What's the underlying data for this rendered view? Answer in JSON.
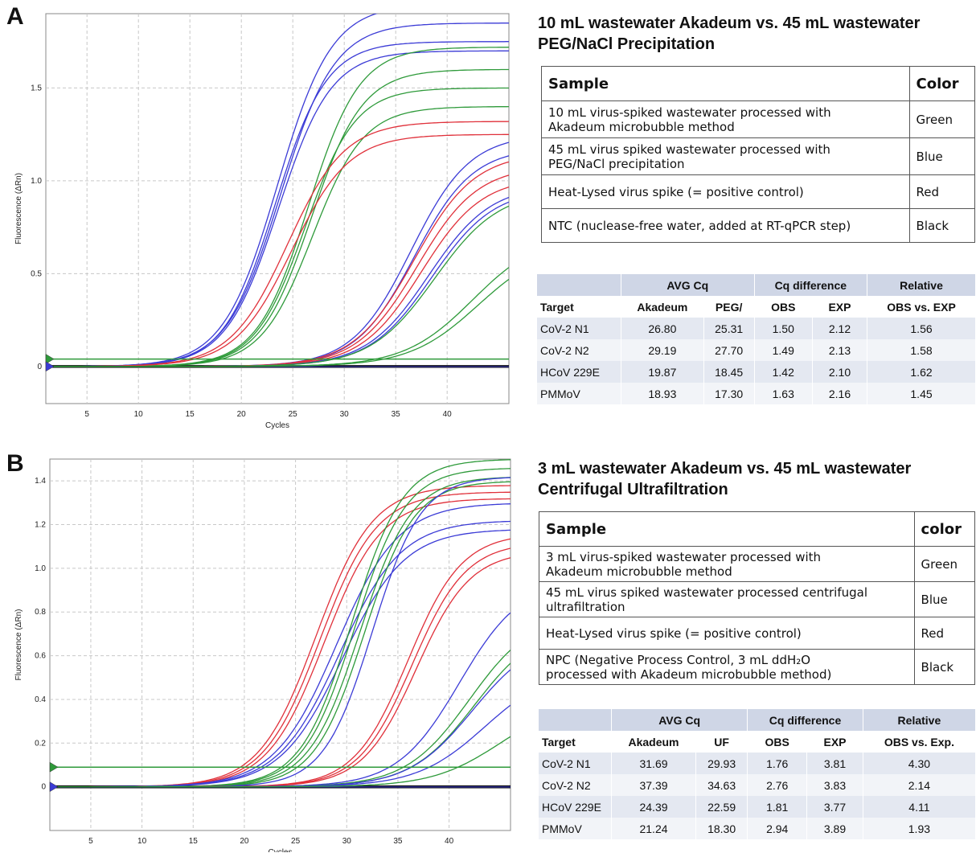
{
  "panels": [
    {
      "letter": "A",
      "title_line1": "10 mL wastewater Akadeum vs. 45 mL wastewater",
      "title_line2": "PEG/NaCl Precipitation",
      "samples_header": {
        "sample": "Sample",
        "color": "Color"
      },
      "samples": [
        {
          "line1": "10 mL virus-spiked wastewater processed with",
          "line2": "Akadeum microbubble method",
          "color": "Green"
        },
        {
          "line1": "45 mL virus spiked wastewater processed with",
          "line2": "PEG/NaCl precipitation",
          "color": "Blue"
        },
        {
          "line1": "Heat-Lysed virus spike (= positive control)",
          "line2": "",
          "color": "Red"
        },
        {
          "line1": "NTC (nuclease-free water, added at RT-qPCR step)",
          "line2": "",
          "color": "Black"
        }
      ],
      "stats_header1": {
        "avg": "AVG Cq",
        "diff": "Cq difference",
        "rel": "Relative"
      },
      "stats_header2": {
        "target": "Target",
        "a": "Akadeum",
        "b": "PEG/",
        "obs": "OBS",
        "exp": "EXP",
        "rel": "OBS vs. EXP"
      },
      "stats_rows": [
        {
          "target": "CoV-2 N1",
          "a": "26.80",
          "b": "25.31",
          "obs": "1.50",
          "exp": "2.12",
          "rel": "1.56"
        },
        {
          "target": "CoV-2 N2",
          "a": "29.19",
          "b": "27.70",
          "obs": "1.49",
          "exp": "2.13",
          "rel": "1.58"
        },
        {
          "target": "HCoV 229E",
          "a": "19.87",
          "b": "18.45",
          "obs": "1.42",
          "exp": "2.10",
          "rel": "1.62"
        },
        {
          "target": "PMMoV",
          "a": "18.93",
          "b": "17.30",
          "obs": "1.63",
          "exp": "2.16",
          "rel": "1.45"
        }
      ]
    },
    {
      "letter": "B",
      "title_line1": "3 mL wastewater Akadeum vs. 45 mL wastewater",
      "title_line2": "Centrifugal Ultrafiltration",
      "samples_header": {
        "sample": "Sample",
        "color": "color"
      },
      "samples": [
        {
          "line1": "3 mL virus-spiked wastewater processed with",
          "line2": "Akadeum microbubble method",
          "color": "Green"
        },
        {
          "line1": "45 mL virus spiked wastewater processed centrifugal",
          "line2": "ultrafiltration",
          "color": "Blue"
        },
        {
          "line1": "Heat-Lysed virus spike (= positive control)",
          "line2": "",
          "color": "Red"
        },
        {
          "line1": "NPC (Negative Process Control, 3 mL ddH₂O",
          "line2": "processed with Akadeum microbubble method)",
          "color": "Black"
        }
      ],
      "stats_header1": {
        "avg": "AVG Cq",
        "diff": "Cq difference",
        "rel": "Relative"
      },
      "stats_header2": {
        "target": "Target",
        "a": "Akadeum",
        "b": "UF",
        "obs": "OBS",
        "exp": "EXP",
        "rel": "OBS vs. Exp."
      },
      "stats_rows": [
        {
          "target": "CoV-2 N1",
          "a": "31.69",
          "b": "29.93",
          "obs": "1.76",
          "exp": "3.81",
          "rel": "4.30"
        },
        {
          "target": "CoV-2 N2",
          "a": "37.39",
          "b": "34.63",
          "obs": "2.76",
          "exp": "3.83",
          "rel": "2.14"
        },
        {
          "target": "HCoV 229E",
          "a": "24.39",
          "b": "22.59",
          "obs": "1.81",
          "exp": "3.77",
          "rel": "4.11"
        },
        {
          "target": "PMMoV",
          "a": "21.24",
          "b": "18.30",
          "obs": "2.94",
          "exp": "3.89",
          "rel": "1.93"
        }
      ]
    }
  ],
  "chart_data": [
    {
      "type": "line",
      "xlabel": "Cycles",
      "ylabel": "Fluorescence (ΔRn)",
      "xlim": [
        1,
        46
      ],
      "ylim": [
        -0.2,
        1.9
      ],
      "xticks": [
        5,
        10,
        15,
        20,
        25,
        30,
        35,
        40
      ],
      "yticks": [
        0,
        0.5,
        1.0,
        1.5
      ],
      "ytick_labels": [
        "0",
        "0.5",
        "1.0",
        "1.5"
      ],
      "grid": true,
      "threshold": 0.04,
      "colors": {
        "green": "#2e9a3a",
        "blue": "#3b3bd6",
        "red": "#e0303a",
        "black": "#111111",
        "gray": "#777777"
      },
      "series": [
        {
          "color": "blue",
          "mid": 23.5,
          "max": 1.95,
          "k": 0.38
        },
        {
          "color": "blue",
          "mid": 23.8,
          "max": 1.85,
          "k": 0.38
        },
        {
          "color": "blue",
          "mid": 23.3,
          "max": 1.75,
          "k": 0.4
        },
        {
          "color": "blue",
          "mid": 23.6,
          "max": 1.7,
          "k": 0.39
        },
        {
          "color": "green",
          "mid": 26.5,
          "max": 1.72,
          "k": 0.4
        },
        {
          "color": "green",
          "mid": 26.8,
          "max": 1.6,
          "k": 0.4
        },
        {
          "color": "green",
          "mid": 26.2,
          "max": 1.5,
          "k": 0.41
        },
        {
          "color": "green",
          "mid": 26.9,
          "max": 1.4,
          "k": 0.4
        },
        {
          "color": "red",
          "mid": 24.5,
          "max": 1.32,
          "k": 0.36
        },
        {
          "color": "red",
          "mid": 24.9,
          "max": 1.25,
          "k": 0.36
        },
        {
          "color": "blue",
          "mid": 36.5,
          "max": 1.25,
          "k": 0.35
        },
        {
          "color": "blue",
          "mid": 36.8,
          "max": 1.18,
          "k": 0.35
        },
        {
          "color": "red",
          "mid": 36.8,
          "max": 1.15,
          "k": 0.34
        },
        {
          "color": "red",
          "mid": 37.1,
          "max": 1.08,
          "k": 0.34
        },
        {
          "color": "red",
          "mid": 37.5,
          "max": 1.02,
          "k": 0.34
        },
        {
          "color": "blue",
          "mid": 38.2,
          "max": 0.98,
          "k": 0.33
        },
        {
          "color": "blue",
          "mid": 38.5,
          "max": 0.96,
          "k": 0.33
        },
        {
          "color": "green",
          "mid": 38.8,
          "max": 0.95,
          "k": 0.32
        },
        {
          "color": "green",
          "mid": 42.5,
          "max": 0.72,
          "k": 0.3
        },
        {
          "color": "green",
          "mid": 43.0,
          "max": 0.66,
          "k": 0.3
        }
      ]
    },
    {
      "type": "line",
      "xlabel": "Cycles",
      "ylabel": "Fluorescence (ΔRn)",
      "xlim": [
        1,
        46
      ],
      "ylim": [
        -0.2,
        1.5
      ],
      "xticks": [
        5,
        10,
        15,
        20,
        25,
        30,
        35,
        40
      ],
      "yticks": [
        0,
        0.2,
        0.4,
        0.6,
        0.8,
        1.0,
        1.2,
        1.4
      ],
      "ytick_labels": [
        "0",
        "0.2",
        "0.4",
        "0.6",
        "0.8",
        "1.0",
        "1.2",
        "1.4"
      ],
      "grid": true,
      "threshold": 0.09,
      "colors": {
        "green": "#2e9a3a",
        "blue": "#3b3bd6",
        "red": "#e0303a",
        "black": "#111111",
        "gray": "#777777"
      },
      "series": [
        {
          "color": "red",
          "mid": 27.0,
          "max": 1.38,
          "k": 0.36
        },
        {
          "color": "red",
          "mid": 27.4,
          "max": 1.35,
          "k": 0.36
        },
        {
          "color": "red",
          "mid": 27.8,
          "max": 1.32,
          "k": 0.36
        },
        {
          "color": "blue",
          "mid": 29.0,
          "max": 1.3,
          "k": 0.33
        },
        {
          "color": "blue",
          "mid": 29.3,
          "max": 1.22,
          "k": 0.33
        },
        {
          "color": "blue",
          "mid": 29.6,
          "max": 1.18,
          "k": 0.33
        },
        {
          "color": "green",
          "mid": 30.5,
          "max": 1.5,
          "k": 0.4
        },
        {
          "color": "green",
          "mid": 30.8,
          "max": 1.46,
          "k": 0.4
        },
        {
          "color": "green",
          "mid": 31.3,
          "max": 1.42,
          "k": 0.4
        },
        {
          "color": "green",
          "mid": 31.7,
          "max": 1.4,
          "k": 0.41
        },
        {
          "color": "blue",
          "mid": 32.5,
          "max": 1.42,
          "k": 0.42
        },
        {
          "color": "red",
          "mid": 36.0,
          "max": 1.16,
          "k": 0.38
        },
        {
          "color": "red",
          "mid": 36.4,
          "max": 1.12,
          "k": 0.38
        },
        {
          "color": "red",
          "mid": 36.8,
          "max": 1.08,
          "k": 0.38
        },
        {
          "color": "blue",
          "mid": 41.0,
          "max": 0.95,
          "k": 0.33
        },
        {
          "color": "green",
          "mid": 42.0,
          "max": 0.8,
          "k": 0.32
        },
        {
          "color": "green",
          "mid": 42.5,
          "max": 0.75,
          "k": 0.32
        },
        {
          "color": "blue",
          "mid": 42.3,
          "max": 0.7,
          "k": 0.32
        },
        {
          "color": "blue",
          "mid": 43.5,
          "max": 0.55,
          "k": 0.3
        },
        {
          "color": "green",
          "mid": 45.0,
          "max": 0.4,
          "k": 0.3
        }
      ]
    }
  ]
}
